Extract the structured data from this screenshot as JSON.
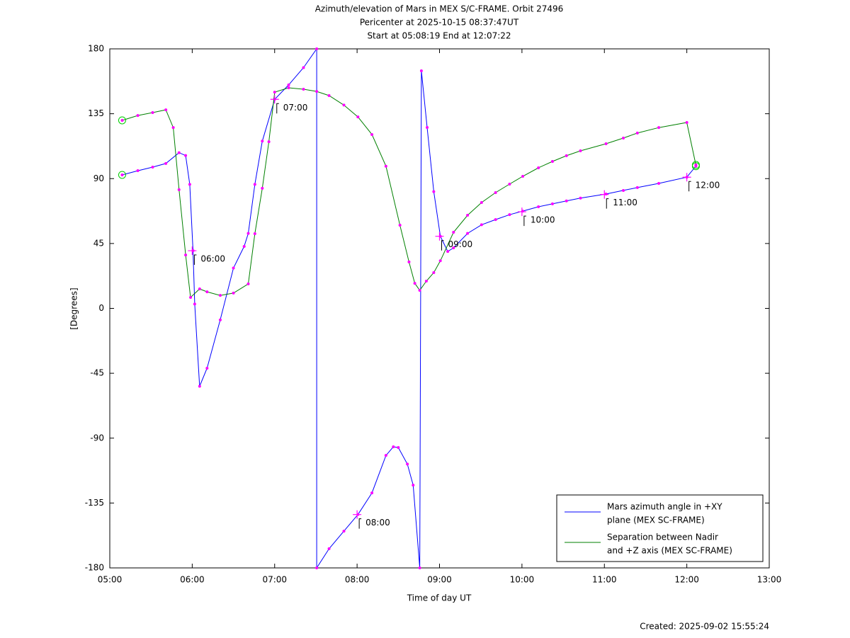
{
  "chart_data": {
    "type": "line",
    "title": "Azimuth/elevation of Mars in MEX S/C-FRAME.  Orbit 27496",
    "subtitle": [
      "Pericenter at 2025-10-15 08:37:47UT",
      "Start at 05:08:19 End at 12:07:22"
    ],
    "xlabel": "Time of day UT",
    "ylabel": "[Degrees]",
    "footer": "Created: 2025-09-02 15:55:24",
    "xlim": [
      5,
      13
    ],
    "xticks": [
      {
        "value": 5,
        "label": "05:00"
      },
      {
        "value": 6,
        "label": "06:00"
      },
      {
        "value": 7,
        "label": "07:00"
      },
      {
        "value": 8,
        "label": "08:00"
      },
      {
        "value": 9,
        "label": "09:00"
      },
      {
        "value": 10,
        "label": "10:00"
      },
      {
        "value": 11,
        "label": "11:00"
      },
      {
        "value": 12,
        "label": "12:00"
      },
      {
        "value": 13,
        "label": "13:00"
      }
    ],
    "ylim": [
      -180,
      180
    ],
    "yticks": [
      180,
      135,
      90,
      45,
      0,
      -45,
      -90,
      -135,
      -180
    ],
    "legend": "lower right",
    "marker_color": "#ff00ff",
    "series": [
      {
        "name": [
          "Mars azimuth angle in +XY",
          "plane (MEX SC-FRAME)"
        ],
        "color": "#0000ff",
        "x": [
          5.15,
          5.34,
          5.52,
          5.68,
          5.84,
          5.92,
          5.97,
          6.01,
          6.03,
          6.09,
          6.18,
          6.34,
          6.5,
          6.63,
          6.68,
          6.76,
          6.85,
          7.0,
          7.17,
          7.35,
          7.51,
          7.51,
          7.66,
          7.84,
          8.01,
          8.18,
          8.35,
          8.44,
          8.5,
          8.61,
          8.68,
          8.76,
          8.78,
          8.85,
          8.93,
          9.01,
          9.1,
          9.17,
          9.34,
          9.51,
          9.68,
          9.85,
          10.01,
          10.2,
          10.37,
          10.54,
          10.71,
          11.02,
          11.23,
          11.4,
          11.66,
          12.0,
          12.11
        ],
        "values": [
          92.6,
          95.5,
          98,
          100.5,
          108,
          106,
          86,
          40,
          3,
          -54,
          -41.5,
          -8,
          28,
          43,
          52,
          86,
          116,
          145,
          155,
          167,
          180,
          -180,
          -166.7,
          -154.5,
          -143,
          -128,
          -102,
          -96,
          -96.5,
          -108,
          -122.6,
          -180,
          164.8,
          125.5,
          81,
          50,
          39.5,
          42,
          52,
          58,
          61.6,
          65,
          67.5,
          70.5,
          72.5,
          74.5,
          76.5,
          79.3,
          81.8,
          83.8,
          86.7,
          91,
          98.6
        ]
      },
      {
        "name": [
          "Separation between Nadir",
          "and +Z axis (MEX SC-FRAME)"
        ],
        "color": "#008000",
        "x": [
          5.15,
          5.34,
          5.52,
          5.68,
          5.77,
          5.84,
          5.92,
          5.98,
          6.09,
          6.18,
          6.34,
          6.5,
          6.68,
          6.76,
          6.85,
          6.93,
          7.0,
          7.17,
          7.35,
          7.51,
          7.66,
          7.84,
          8.01,
          8.18,
          8.35,
          8.52,
          8.63,
          8.7,
          8.76,
          8.84,
          8.93,
          9.01,
          9.17,
          9.34,
          9.51,
          9.68,
          9.85,
          10.01,
          10.2,
          10.37,
          10.54,
          10.71,
          11.02,
          11.23,
          11.4,
          11.66,
          12.0,
          12.11
        ],
        "values": [
          130.4,
          133.8,
          135.8,
          137.7,
          125.4,
          82.3,
          37,
          7.6,
          13.5,
          11.5,
          9,
          10.6,
          17,
          51.8,
          83.3,
          115.6,
          150,
          153,
          152,
          150.5,
          147.6,
          141,
          132.8,
          120.6,
          98.6,
          57.7,
          32.2,
          17.4,
          12.5,
          18.9,
          24.8,
          33,
          52.8,
          64.6,
          73.4,
          80.3,
          86.2,
          91.6,
          97.5,
          101.9,
          105.9,
          109.3,
          114.2,
          118.1,
          121.6,
          125.4,
          128.9,
          99.5
        ]
      }
    ],
    "annotations": [
      {
        "text": "06:00",
        "x": 6,
        "y": 40
      },
      {
        "text": "07:00",
        "x": 7,
        "y": 145
      },
      {
        "text": "08:00",
        "x": 8,
        "y": -143
      },
      {
        "text": "09:00",
        "x": 9,
        "y": 50
      },
      {
        "text": "10:00",
        "x": 10,
        "y": 67
      },
      {
        "text": "11:00",
        "x": 11,
        "y": 79
      },
      {
        "text": "12:00",
        "x": 12,
        "y": 91
      }
    ]
  }
}
